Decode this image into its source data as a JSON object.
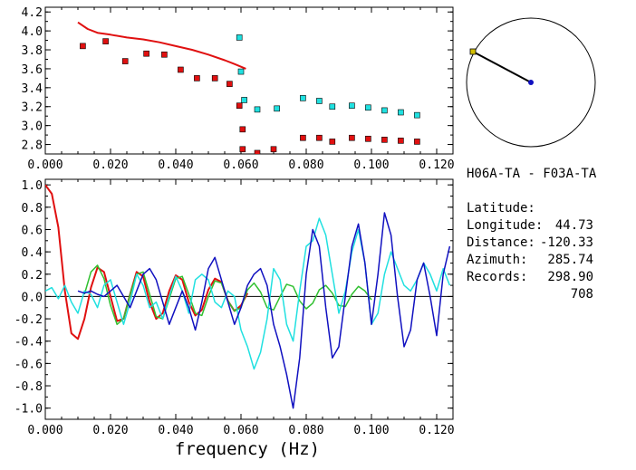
{
  "info": {
    "title": "H06A-TA - F03A-TA",
    "rows": [
      {
        "label": "Latitude:",
        "value": "44.73"
      },
      {
        "label": "Longitude:",
        "value": "-120.33"
      },
      {
        "label": "Distance:",
        "value": "285.74"
      },
      {
        "label": "Azimuth:",
        "value": "298.90"
      },
      {
        "label": "Records:",
        "value": "708"
      }
    ]
  },
  "colors": {
    "red": "#e01010",
    "cyan": "#20e0e0",
    "blue": "#1010c0",
    "green": "#30c030",
    "frame": "#000000"
  },
  "chart_data": [
    {
      "type": "scatter",
      "title": "",
      "xlabel": "",
      "ylabel": "",
      "xlim": [
        0.0,
        0.125
      ],
      "ylim": [
        2.7,
        4.25
      ],
      "xticks": [
        "0.000",
        "0.020",
        "0.040",
        "0.060",
        "0.080",
        "0.100",
        "0.120"
      ],
      "yticks": [
        "2.8",
        "3.0",
        "3.2",
        "3.4",
        "3.6",
        "3.8",
        "4.0",
        "4.2"
      ],
      "series": [
        {
          "color": "red",
          "kind": "line",
          "x": [
            0.01,
            0.013,
            0.016,
            0.02,
            0.025,
            0.03,
            0.035,
            0.04,
            0.045,
            0.05,
            0.055,
            0.058,
            0.0615
          ],
          "y": [
            4.09,
            4.02,
            3.98,
            3.96,
            3.93,
            3.91,
            3.88,
            3.84,
            3.8,
            3.75,
            3.69,
            3.65,
            3.6
          ]
        },
        {
          "color": "red",
          "kind": "points",
          "x": [
            0.0115,
            0.0185,
            0.0245,
            0.031,
            0.0365,
            0.0415,
            0.0465,
            0.052,
            0.0565,
            0.0595,
            0.0605,
            0.0605,
            0.065,
            0.07,
            0.079,
            0.084,
            0.088,
            0.094,
            0.099,
            0.104,
            0.109,
            0.114
          ],
          "y": [
            3.84,
            3.89,
            3.68,
            3.76,
            3.75,
            3.59,
            3.5,
            3.5,
            3.44,
            3.21,
            2.96,
            2.75,
            2.71,
            2.75,
            2.87,
            2.87,
            2.83,
            2.87,
            2.86,
            2.85,
            2.84,
            2.83
          ]
        },
        {
          "color": "cyan",
          "kind": "points",
          "x": [
            0.0595,
            0.06,
            0.061,
            0.065,
            0.071,
            0.079,
            0.084,
            0.088,
            0.094,
            0.099,
            0.104,
            0.109,
            0.114
          ],
          "y": [
            3.93,
            3.57,
            3.27,
            3.17,
            3.18,
            3.29,
            3.26,
            3.2,
            3.21,
            3.19,
            3.16,
            3.14,
            3.11
          ]
        }
      ]
    },
    {
      "type": "line",
      "title": "",
      "xlabel": "frequency (Hz)",
      "ylabel": "",
      "xlim": [
        0.0,
        0.125
      ],
      "ylim": [
        -1.1,
        1.05
      ],
      "xticks": [
        "0.000",
        "0.020",
        "0.040",
        "0.060",
        "0.080",
        "0.100",
        "0.120"
      ],
      "yticks": [
        "1.0",
        "0.8",
        "0.6",
        "0.4",
        "0.2",
        "0.0",
        "-0.2",
        "-0.4",
        "-0.6",
        "-0.8",
        "-1.0"
      ],
      "series": [
        {
          "color": "red",
          "x": [
            0.0,
            0.002,
            0.004,
            0.006,
            0.008,
            0.01,
            0.012,
            0.014,
            0.016,
            0.018,
            0.02,
            0.022,
            0.024,
            0.026,
            0.028,
            0.03,
            0.032,
            0.034,
            0.036,
            0.038,
            0.04,
            0.042,
            0.044,
            0.046,
            0.048,
            0.05,
            0.052,
            0.054,
            0.056,
            0.058,
            0.06,
            0.062
          ],
          "y": [
            1.0,
            0.92,
            0.62,
            0.05,
            -0.33,
            -0.38,
            -0.2,
            0.08,
            0.26,
            0.22,
            0.0,
            -0.22,
            -0.2,
            0.02,
            0.22,
            0.18,
            -0.05,
            -0.2,
            -0.15,
            0.05,
            0.19,
            0.15,
            -0.05,
            -0.17,
            -0.12,
            0.06,
            0.16,
            0.13,
            -0.04,
            -0.13,
            -0.08,
            0.03
          ]
        },
        {
          "color": "green",
          "x": [
            0.012,
            0.014,
            0.016,
            0.018,
            0.02,
            0.022,
            0.024,
            0.026,
            0.028,
            0.03,
            0.032,
            0.034,
            0.036,
            0.038,
            0.04,
            0.042,
            0.044,
            0.046,
            0.048,
            0.05,
            0.052,
            0.054,
            0.056,
            0.058,
            0.06,
            0.062,
            0.064,
            0.066,
            0.068,
            0.07,
            0.072,
            0.074,
            0.076,
            0.078,
            0.08,
            0.082,
            0.084,
            0.086,
            0.088,
            0.09,
            0.092,
            0.094,
            0.096,
            0.098,
            0.1
          ],
          "y": [
            0.02,
            0.22,
            0.28,
            0.16,
            -0.08,
            -0.25,
            -0.2,
            0.02,
            0.2,
            0.22,
            0.02,
            -0.18,
            -0.2,
            -0.02,
            0.16,
            0.18,
            0.02,
            -0.15,
            -0.17,
            0.0,
            0.14,
            0.12,
            -0.04,
            -0.13,
            -0.1,
            0.06,
            0.12,
            0.04,
            -0.1,
            -0.12,
            0.0,
            0.11,
            0.09,
            -0.04,
            -0.11,
            -0.06,
            0.06,
            0.1,
            0.03,
            -0.08,
            -0.09,
            0.02,
            0.09,
            0.05,
            -0.03
          ]
        },
        {
          "color": "cyan",
          "x": [
            0.0,
            0.002,
            0.004,
            0.006,
            0.008,
            0.01,
            0.012,
            0.014,
            0.016,
            0.018,
            0.02,
            0.022,
            0.024,
            0.026,
            0.028,
            0.03,
            0.032,
            0.034,
            0.036,
            0.038,
            0.04,
            0.042,
            0.044,
            0.046,
            0.048,
            0.05,
            0.052,
            0.054,
            0.056,
            0.058,
            0.06,
            0.062,
            0.064,
            0.066,
            0.068,
            0.07,
            0.072,
            0.074,
            0.076,
            0.078,
            0.08,
            0.082,
            0.084,
            0.086,
            0.088,
            0.09,
            0.092,
            0.094,
            0.096,
            0.098,
            0.1,
            0.102,
            0.104,
            0.106,
            0.108,
            0.11,
            0.112,
            0.114,
            0.116,
            0.118,
            0.12,
            0.122,
            0.124
          ],
          "y": [
            0.05,
            0.08,
            -0.02,
            0.1,
            -0.05,
            -0.15,
            0.05,
            0.02,
            -0.1,
            0.1,
            0.15,
            -0.05,
            -0.25,
            -0.05,
            0.2,
            0.1,
            -0.1,
            -0.05,
            -0.2,
            0.0,
            0.18,
            0.05,
            -0.15,
            0.15,
            0.2,
            0.15,
            -0.05,
            -0.1,
            0.05,
            0.0,
            -0.3,
            -0.45,
            -0.65,
            -0.5,
            -0.2,
            0.25,
            0.15,
            -0.25,
            -0.4,
            0.05,
            0.45,
            0.5,
            0.7,
            0.55,
            0.2,
            -0.15,
            0.05,
            0.4,
            0.6,
            0.3,
            -0.25,
            -0.15,
            0.2,
            0.4,
            0.25,
            0.1,
            0.05,
            0.15,
            0.3,
            0.2,
            0.05,
            0.25,
            0.1
          ]
        },
        {
          "color": "blue",
          "x": [
            0.01,
            0.012,
            0.014,
            0.016,
            0.018,
            0.02,
            0.022,
            0.024,
            0.026,
            0.028,
            0.03,
            0.032,
            0.034,
            0.036,
            0.038,
            0.04,
            0.042,
            0.044,
            0.046,
            0.048,
            0.05,
            0.052,
            0.054,
            0.056,
            0.058,
            0.06,
            0.062,
            0.064,
            0.066,
            0.068,
            0.07,
            0.072,
            0.074,
            0.076,
            0.078,
            0.08,
            0.082,
            0.084,
            0.086,
            0.088,
            0.09,
            0.092,
            0.094,
            0.096,
            0.098,
            0.1,
            0.102,
            0.104,
            0.106,
            0.108,
            0.11,
            0.112,
            0.114,
            0.116,
            0.118,
            0.12,
            0.122,
            0.124
          ],
          "y": [
            0.05,
            0.03,
            0.05,
            0.02,
            0.0,
            0.05,
            0.1,
            0.0,
            -0.1,
            0.05,
            0.2,
            0.25,
            0.15,
            -0.05,
            -0.25,
            -0.1,
            0.05,
            -0.1,
            -0.3,
            -0.05,
            0.25,
            0.35,
            0.15,
            -0.05,
            -0.25,
            -0.1,
            0.1,
            0.2,
            0.25,
            0.1,
            -0.25,
            -0.45,
            -0.7,
            -1.0,
            -0.55,
            0.2,
            0.6,
            0.45,
            -0.1,
            -0.55,
            -0.45,
            0.0,
            0.45,
            0.65,
            0.3,
            -0.25,
            0.2,
            0.75,
            0.55,
            0.0,
            -0.45,
            -0.3,
            0.15,
            0.3,
            0.0,
            -0.35,
            0.2,
            0.45
          ]
        }
      ]
    }
  ],
  "map": {
    "marker_color": "#d4c000",
    "center_color": "#1010c0"
  }
}
